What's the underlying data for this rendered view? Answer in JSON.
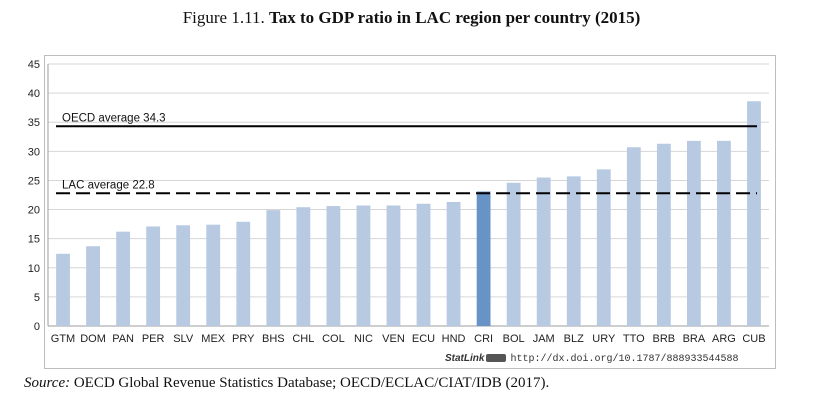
{
  "figure": {
    "number": "Figure 1.11.",
    "title": "Tax to GDP ratio in LAC region per country (2015)"
  },
  "statlink": {
    "brand": "StatLink",
    "url": "http://dx.doi.org/10.1787/888933544588"
  },
  "source": {
    "label": "Source:",
    "text": "OECD Global Revenue Statistics Database; OECD/ECLAC/CIAT/IDB (2017)."
  },
  "chart_data": {
    "type": "bar",
    "title": "",
    "xlabel": "",
    "ylabel": "",
    "ylim": [
      0,
      45
    ],
    "yticks": [
      0,
      5,
      10,
      15,
      20,
      25,
      30,
      35,
      40,
      45
    ],
    "grid": true,
    "categories": [
      "GTM",
      "DOM",
      "PAN",
      "PER",
      "SLV",
      "MEX",
      "PRY",
      "BHS",
      "CHL",
      "COL",
      "NIC",
      "VEN",
      "ECU",
      "HND",
      "CRI",
      "BOL",
      "JAM",
      "BLZ",
      "URY",
      "TTO",
      "BRB",
      "BRA",
      "ARG",
      "CUB"
    ],
    "values": [
      12.4,
      13.7,
      16.2,
      17.1,
      17.3,
      17.4,
      17.9,
      19.9,
      20.4,
      20.6,
      20.7,
      20.7,
      21.0,
      21.3,
      23.1,
      24.6,
      25.5,
      25.7,
      26.9,
      30.7,
      31.3,
      31.8,
      31.8,
      38.6
    ],
    "highlight_category": "CRI",
    "colors": {
      "bar": "#b8c9e2",
      "highlight": "#6893c6",
      "grid": "#d6d6d6",
      "reference_line": "#000000"
    },
    "reference_lines": [
      {
        "label": "OECD average 34.3",
        "value": 34.3,
        "style": "solid"
      },
      {
        "label": "LAC average 22.8",
        "value": 22.8,
        "style": "dashed"
      }
    ]
  }
}
